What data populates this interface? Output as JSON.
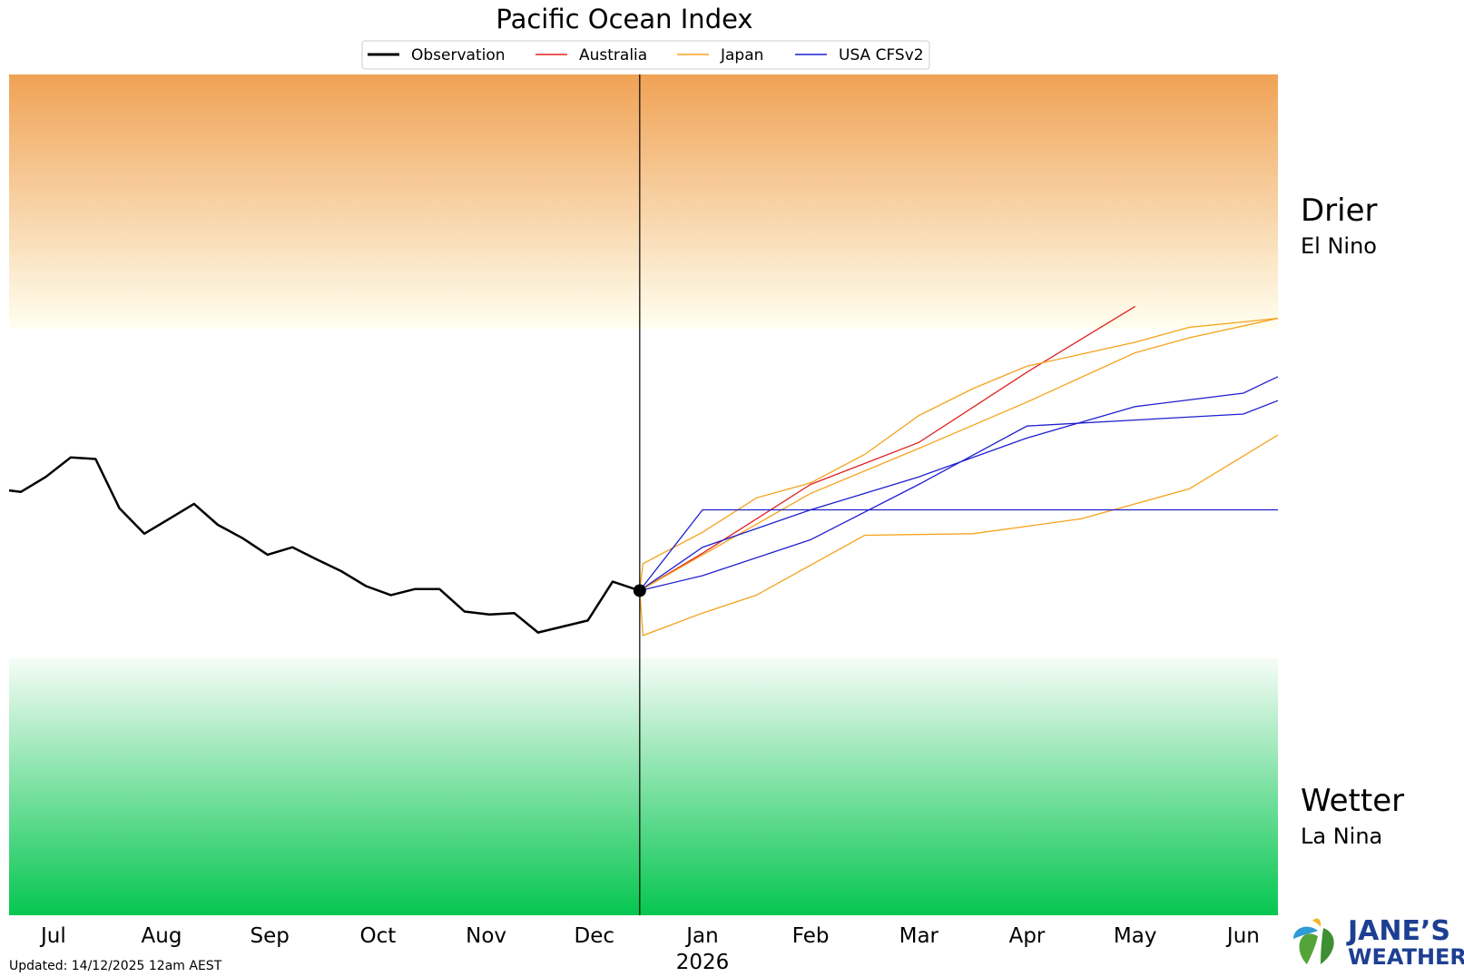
{
  "chart_data": {
    "type": "line",
    "title": "Pacific Ocean Index",
    "x_tick_labels": [
      "Jul",
      "Aug",
      "Sep",
      "Oct",
      "Nov",
      "Dec",
      "Jan",
      "Feb",
      "Mar",
      "Apr",
      "May",
      "Jun"
    ],
    "x_tick_year_label": "2026",
    "x_unit": "months from 1 Jul 2025",
    "xlim": [
      -0.41,
      11.32
    ],
    "ylim": [
      -2.82,
      2.8
    ],
    "x_tick_positions": [
      0,
      1,
      2,
      3,
      4,
      5,
      6,
      7,
      8,
      9,
      10,
      11
    ],
    "current_time": 5.42,
    "grid": false,
    "legend_position": "top-center",
    "bands": [
      {
        "label": "Drier",
        "sublabel": "El Nino",
        "from": 1.1,
        "to": 2.8,
        "colors": [
          "#fffff0",
          "#f0a255"
        ]
      },
      {
        "label": "Wetter",
        "sublabel": "La Nina",
        "from": -2.82,
        "to": -1.1,
        "colors": [
          "#05c650",
          "#f6fcf7"
        ]
      }
    ],
    "series": [
      {
        "name": "Observation",
        "color": "#000000",
        "style": "observation",
        "points": [
          [
            -0.41,
            0.02
          ],
          [
            -0.3,
            0.01
          ],
          [
            -0.07,
            0.11
          ],
          [
            0.16,
            0.24
          ],
          [
            0.39,
            0.23
          ],
          [
            0.61,
            -0.1
          ],
          [
            0.84,
            -0.27
          ],
          [
            1.07,
            -0.17
          ],
          [
            1.3,
            -0.07
          ],
          [
            1.52,
            -0.21
          ],
          [
            1.75,
            -0.3
          ],
          [
            1.98,
            -0.41
          ],
          [
            2.21,
            -0.36
          ],
          [
            2.43,
            -0.44
          ],
          [
            2.66,
            -0.52
          ],
          [
            2.89,
            -0.62
          ],
          [
            3.12,
            -0.68
          ],
          [
            3.34,
            -0.64
          ],
          [
            3.57,
            -0.64
          ],
          [
            3.8,
            -0.79
          ],
          [
            4.03,
            -0.81
          ],
          [
            4.26,
            -0.8
          ],
          [
            4.48,
            -0.93
          ],
          [
            4.71,
            -0.89
          ],
          [
            4.94,
            -0.85
          ],
          [
            5.17,
            -0.59
          ],
          [
            5.42,
            -0.65
          ]
        ]
      },
      {
        "name": "Australia",
        "color": "#e0201e",
        "lines": [
          [
            [
              5.42,
              -0.65
            ],
            [
              6.0,
              -0.4
            ],
            [
              7.0,
              0.06
            ],
            [
              8.0,
              0.34
            ],
            [
              9.0,
              0.81
            ],
            [
              10.0,
              1.25
            ]
          ]
        ]
      },
      {
        "name": "Japan",
        "color": "#f5a21b",
        "lines": [
          [
            [
              5.42,
              -0.65
            ],
            [
              5.45,
              -0.47
            ],
            [
              6.0,
              -0.26
            ],
            [
              6.5,
              -0.03
            ],
            [
              7.0,
              0.07
            ],
            [
              7.5,
              0.26
            ],
            [
              8.0,
              0.52
            ],
            [
              8.5,
              0.7
            ],
            [
              9.0,
              0.85
            ],
            [
              10.0,
              1.01
            ],
            [
              10.5,
              1.11
            ],
            [
              11.32,
              1.17
            ]
          ],
          [
            [
              5.42,
              -0.65
            ],
            [
              5.45,
              -0.95
            ],
            [
              6.0,
              -0.8
            ],
            [
              6.5,
              -0.68
            ],
            [
              7.0,
              -0.48
            ],
            [
              7.5,
              -0.28
            ],
            [
              8.5,
              -0.27
            ],
            [
              9.5,
              -0.17
            ],
            [
              10.5,
              0.03
            ],
            [
              11.32,
              0.39
            ]
          ],
          [
            [
              5.42,
              -0.65
            ],
            [
              7.0,
              0.0
            ],
            [
              8.0,
              0.3
            ],
            [
              9.0,
              0.61
            ],
            [
              10.0,
              0.94
            ],
            [
              10.5,
              1.04
            ],
            [
              11.32,
              1.17
            ]
          ]
        ]
      },
      {
        "name": "USA CFSv2",
        "color": "#1f1fd0",
        "lines": [
          [
            [
              5.42,
              -0.65
            ],
            [
              6.0,
              -0.36
            ],
            [
              7.0,
              -0.11
            ],
            [
              8.0,
              0.11
            ],
            [
              9.0,
              0.37
            ],
            [
              10.0,
              0.58
            ],
            [
              11.0,
              0.67
            ],
            [
              11.32,
              0.78
            ]
          ],
          [
            [
              5.42,
              -0.65
            ],
            [
              6.0,
              -0.55
            ],
            [
              7.0,
              -0.31
            ],
            [
              8.0,
              0.06
            ],
            [
              9.0,
              0.45
            ],
            [
              10.0,
              0.49
            ],
            [
              11.0,
              0.53
            ],
            [
              11.32,
              0.62
            ]
          ],
          [
            [
              5.42,
              -0.65
            ],
            [
              6.0,
              -0.11
            ],
            [
              11.32,
              -0.11
            ]
          ]
        ]
      }
    ]
  },
  "legend": {
    "observation": "Observation",
    "australia": "Australia",
    "japan": "Japan",
    "usa": "USA CFSv2"
  },
  "footer": {
    "updated": "Updated: 14/12/2025 12am AEST"
  },
  "brand": {
    "line1": "JANE’S",
    "line2": "WEATHER"
  }
}
